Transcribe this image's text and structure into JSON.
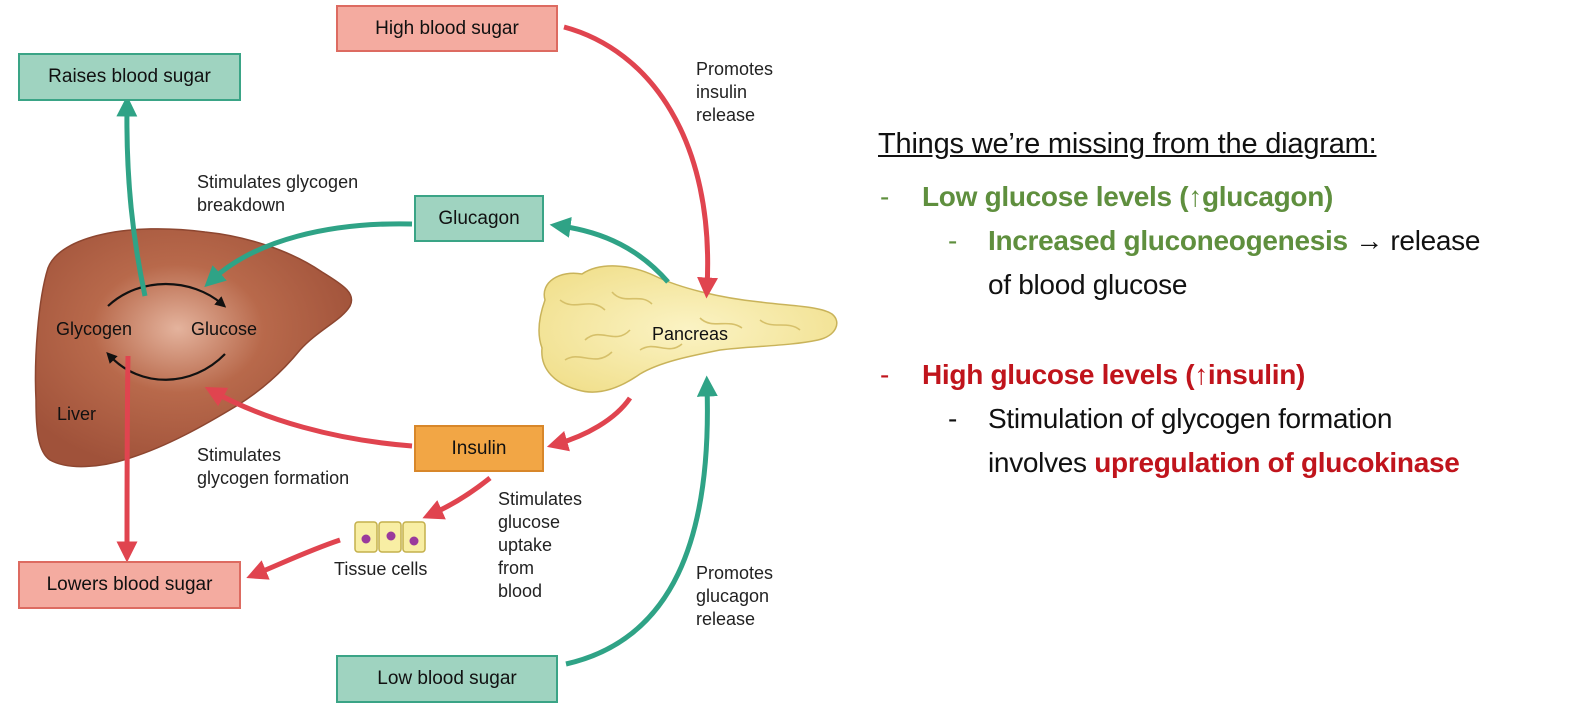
{
  "diagram": {
    "boxes": {
      "raises_blood_sugar": "Raises blood sugar",
      "high_blood_sugar": "High blood sugar",
      "glucagon": "Glucagon",
      "insulin": "Insulin",
      "lowers_blood_sugar": "Lowers blood sugar",
      "low_blood_sugar": "Low blood sugar"
    },
    "labels": {
      "promotes_insulin_release": "Promotes\ninsulin\nrelease",
      "stimulates_glycogen_breakdown": "Stimulates glycogen\nbreakdown",
      "stimulates_glycogen_formation": "Stimulates\nglycogen formation",
      "stimulates_glucose_uptake": "Stimulates\nglucose\nuptake\nfrom\nblood",
      "promotes_glucagon_release": "Promotes\nglucagon\nrelease",
      "tissue_cells": "Tissue cells"
    },
    "organs": {
      "liver": "Liver",
      "glycogen": "Glycogen",
      "glucose": "Glucose",
      "pancreas": "Pancreas"
    },
    "colors": {
      "green_arrow": "#2fa386",
      "red_arrow": "#e0444f",
      "liver": "#a8573c",
      "pancreas": "#f7eca6"
    }
  },
  "notes": {
    "title": "Things we’re missing from the diagram:",
    "dash": "-",
    "low": {
      "heading": "Low glucose levels (↑glucagon)",
      "sub_bold": "Increased gluconeogenesis",
      "sub_rest_line1": " → release",
      "sub_line2": "of blood glucose"
    },
    "high": {
      "heading": "High glucose levels (↑insulin)",
      "sub_line1": "Stimulation of glycogen formation",
      "sub_line2_plain": "involves ",
      "sub_line2_bold": "upregulation of glucokinase"
    }
  }
}
